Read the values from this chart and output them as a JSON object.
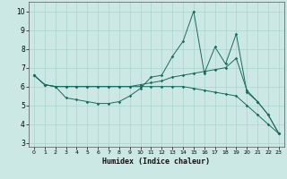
{
  "xlabel": "Humidex (Indice chaleur)",
  "background_color": "#cce8e4",
  "line_color": "#1a6b5e",
  "grid_color": "#aad4ce",
  "xlim": [
    -0.5,
    23.5
  ],
  "ylim": [
    2.8,
    10.5
  ],
  "yticks": [
    3,
    4,
    5,
    6,
    7,
    8,
    9,
    10
  ],
  "xticks": [
    0,
    1,
    2,
    3,
    4,
    5,
    6,
    7,
    8,
    9,
    10,
    11,
    12,
    13,
    14,
    15,
    16,
    17,
    18,
    19,
    20,
    21,
    22,
    23
  ],
  "line1_x": [
    0,
    1,
    2,
    3,
    4,
    5,
    6,
    7,
    8,
    9,
    10,
    11,
    12,
    13,
    14,
    15,
    16,
    17,
    18,
    19,
    20,
    21,
    22,
    23
  ],
  "line1_y": [
    6.6,
    6.1,
    6.0,
    5.4,
    5.3,
    5.2,
    5.1,
    5.1,
    5.2,
    5.5,
    5.9,
    6.5,
    6.6,
    7.6,
    8.4,
    10.0,
    6.7,
    8.1,
    7.2,
    8.8,
    5.7,
    5.2,
    4.5,
    3.5
  ],
  "line2_x": [
    0,
    1,
    2,
    3,
    4,
    5,
    6,
    7,
    8,
    9,
    10,
    11,
    12,
    13,
    14,
    15,
    16,
    17,
    18,
    19,
    20,
    21,
    22,
    23
  ],
  "line2_y": [
    6.6,
    6.1,
    6.0,
    6.0,
    6.0,
    6.0,
    6.0,
    6.0,
    6.0,
    6.0,
    6.1,
    6.2,
    6.3,
    6.5,
    6.6,
    6.7,
    6.8,
    6.9,
    7.0,
    7.5,
    5.8,
    5.2,
    4.5,
    3.5
  ],
  "line3_x": [
    0,
    1,
    2,
    3,
    4,
    5,
    6,
    7,
    8,
    9,
    10,
    11,
    12,
    13,
    14,
    15,
    16,
    17,
    18,
    19,
    20,
    21,
    22,
    23
  ],
  "line3_y": [
    6.6,
    6.1,
    6.0,
    6.0,
    6.0,
    6.0,
    6.0,
    6.0,
    6.0,
    6.0,
    6.0,
    6.0,
    6.0,
    6.0,
    6.0,
    5.9,
    5.8,
    5.7,
    5.6,
    5.5,
    5.0,
    4.5,
    4.0,
    3.5
  ]
}
